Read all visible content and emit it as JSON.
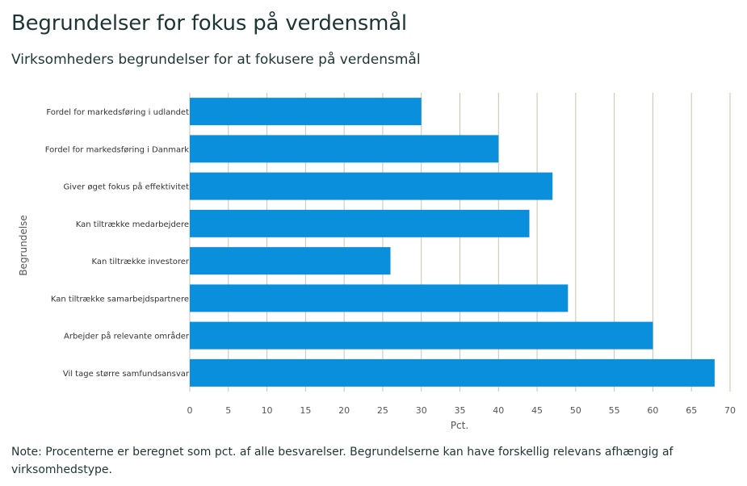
{
  "page": {
    "title": "Begrundelser for fokus på verdensmål",
    "subtitle": "Virksomheders begrundelser for at fokusere på verdensmål",
    "note": "Note: Procenterne er beregnet som pct. af alle besvarelser. Begrundelserne kan have forskellig relevans afhængig af virksomhedstype."
  },
  "chart_data": {
    "type": "bar",
    "orientation": "horizontal",
    "categories": [
      "Fordel for markedsføring i udlandet",
      "Fordel for markedsføring i Danmark",
      "Giver øget fokus på effektivitet",
      "Kan tiltrække medarbejdere",
      "Kan tiltrække investorer",
      "Kan tiltrække samarbejdspartnere",
      "Arbejder på relevante områder",
      "Vil tage større samfundsansvar"
    ],
    "values": [
      30,
      40,
      47,
      44,
      26,
      49,
      60,
      68
    ],
    "xlabel": "Pct.",
    "ylabel": "Begrundelse",
    "xlim": [
      0,
      70
    ],
    "xticks": [
      "0",
      "5",
      "10",
      "15",
      "20",
      "25",
      "30",
      "35",
      "40",
      "45",
      "50",
      "55",
      "60",
      "65",
      "70"
    ],
    "grid": true,
    "legend": "none",
    "bar_color": "#0a8fdd",
    "grid_color": "#c9c3b4"
  }
}
